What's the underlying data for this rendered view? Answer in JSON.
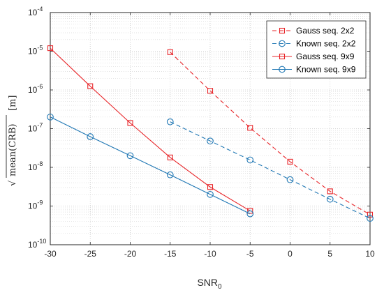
{
  "chart_data": {
    "type": "line",
    "xlabel": "SNR",
    "xlabel_subscript": "0",
    "ylabel": "√mean(CRB) [m]",
    "ylabel_radicand": "mean(CRB)",
    "ylabel_unit": "[m]",
    "xlim": [
      -30,
      10
    ],
    "ylim_log10": [
      -10,
      -4
    ],
    "y_scale": "log",
    "x_ticks": [
      "-30",
      "-25",
      "-20",
      "-15",
      "-10",
      "-5",
      "0",
      "5",
      "10"
    ],
    "y_tick_exponents": [
      "-10",
      "-9",
      "-8",
      "-7",
      "-6",
      "-5",
      "-4"
    ],
    "y_tick_base": "10",
    "grid": true,
    "minor_grid": true,
    "legend_position": "top-right",
    "series": [
      {
        "name": "Gauss seq. 2x2",
        "color": "#e8262a",
        "line_style": "dashed",
        "marker": "square",
        "x": [
          -15,
          -10,
          -5,
          0,
          5,
          10
        ],
        "y": [
          9.5e-06,
          9.5e-07,
          1.05e-07,
          1.4e-08,
          2.4e-09,
          6e-10
        ]
      },
      {
        "name": "Known seq. 2x2",
        "color": "#1f77b4",
        "line_style": "dashed",
        "marker": "circle",
        "x": [
          -15,
          -10,
          -5,
          0,
          5,
          10
        ],
        "y": [
          1.5e-07,
          4.8e-08,
          1.55e-08,
          4.8e-09,
          1.5e-09,
          4.8e-10
        ]
      },
      {
        "name": "Gauss seq. 9x9",
        "color": "#e8262a",
        "line_style": "solid",
        "marker": "square",
        "x": [
          -30,
          -25,
          -20,
          -15,
          -10,
          -5
        ],
        "y": [
          1.2e-05,
          1.25e-06,
          1.4e-07,
          1.8e-08,
          3.1e-09,
          7.5e-10
        ]
      },
      {
        "name": "Known seq. 9x9",
        "color": "#1f77b4",
        "line_style": "solid",
        "marker": "circle",
        "x": [
          -30,
          -25,
          -20,
          -15,
          -10,
          -5
        ],
        "y": [
          2e-07,
          6.2e-08,
          2e-08,
          6.4e-09,
          2e-09,
          6.3e-10
        ]
      }
    ]
  }
}
